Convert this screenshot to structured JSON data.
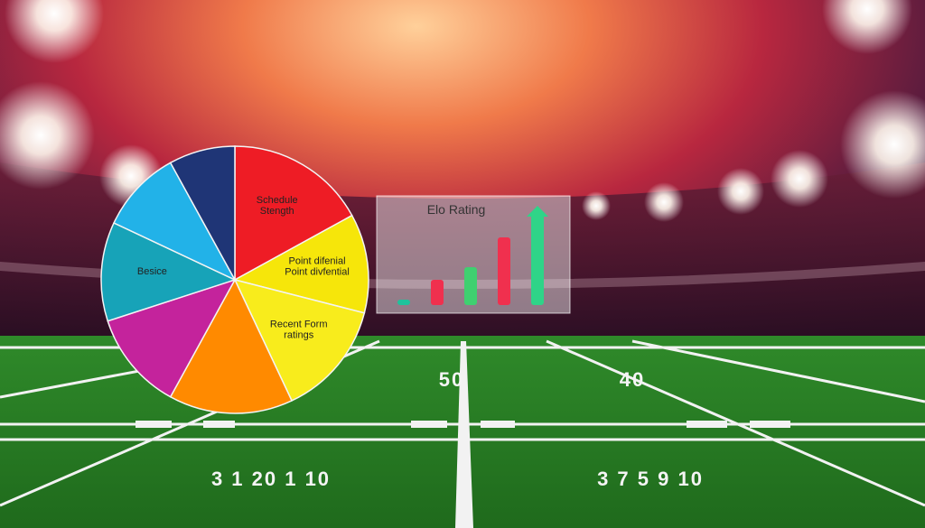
{
  "chart_data": [
    {
      "type": "pie",
      "categories": [
        "Schedule\nStength",
        "Point difenial\nPoint divfential",
        "Recent Form\nratings",
        null,
        null,
        "Besice",
        null,
        null
      ],
      "values": [
        17,
        12,
        14,
        15,
        12,
        12,
        10,
        8
      ],
      "colors": [
        "#ee1c25",
        "#f6e60a",
        "#f8ec1c",
        "#ff8a00",
        "#c4239c",
        "#17a3b8",
        "#22b2e8",
        "#1f3576"
      ]
    },
    {
      "type": "bar",
      "title": "Elo Rating",
      "values": [
        6,
        28,
        42,
        75,
        100
      ],
      "colors": [
        "#1fc29c",
        "#f0304e",
        "#3fd070",
        "#f0304e",
        "#2fd488"
      ]
    }
  ],
  "field": {
    "numbers": [
      "50",
      "40",
      "3 1 20 1 10",
      "3 7 5 9 10"
    ]
  }
}
